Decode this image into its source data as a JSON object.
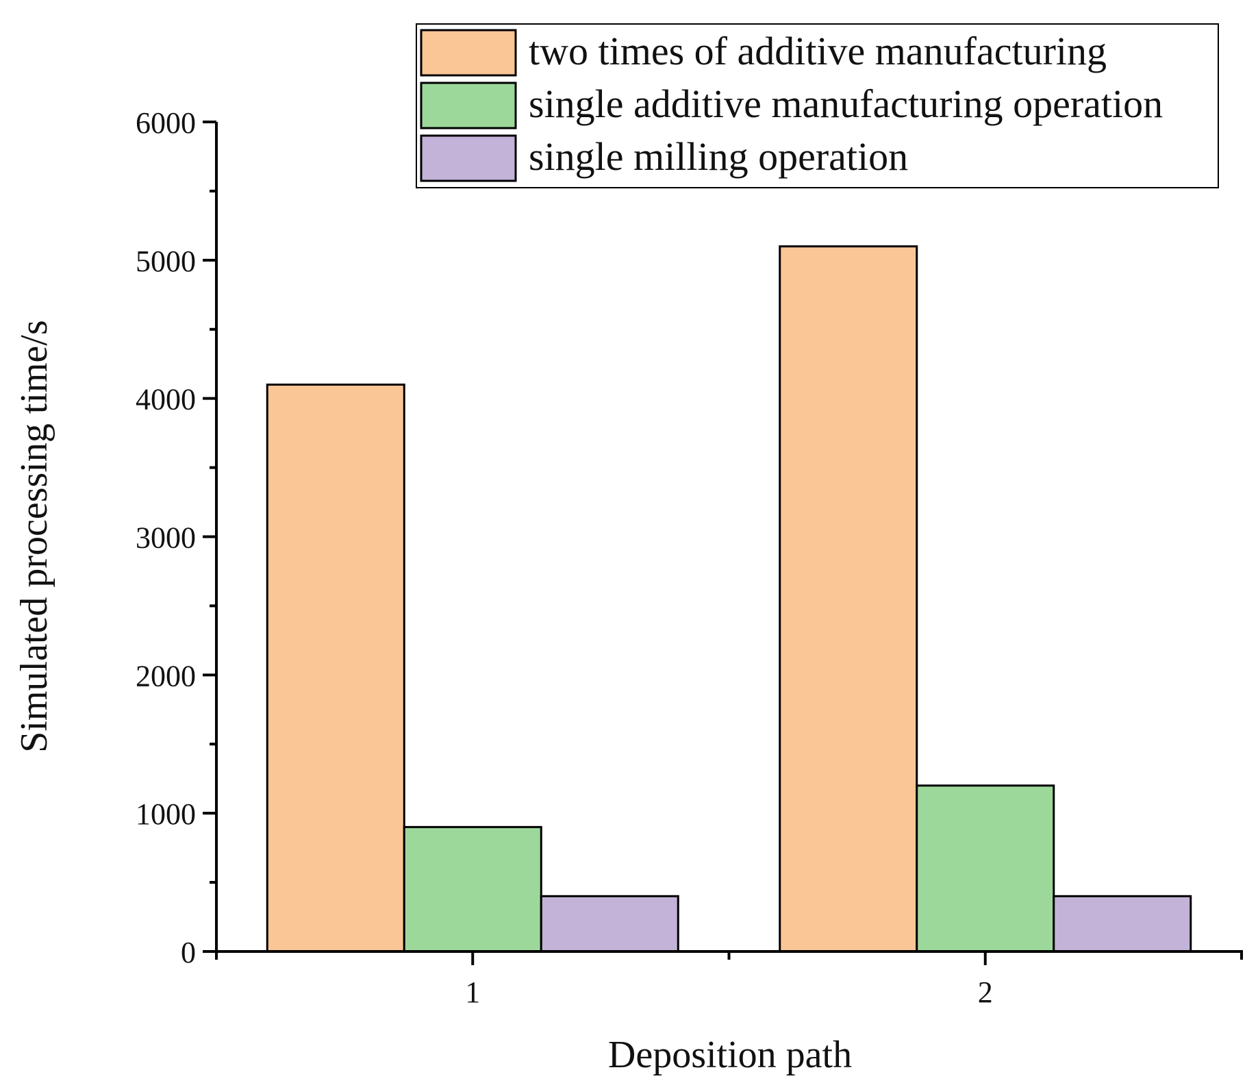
{
  "chart_data": {
    "type": "bar",
    "title": "",
    "xlabel": "Deposition path",
    "ylabel": "Simulated processing time/s",
    "categories": [
      "1",
      "2"
    ],
    "ylim": [
      0,
      6000
    ],
    "yticks": [
      0,
      1000,
      2000,
      3000,
      4000,
      5000,
      6000
    ],
    "grid": false,
    "legend_position": "top-right",
    "series": [
      {
        "name": "two times of additive manufacturing",
        "color": "#FBC696",
        "values": [
          4100,
          5100
        ]
      },
      {
        "name": "single additive manufacturing operation",
        "color": "#9DD89B",
        "values": [
          900,
          1200
        ]
      },
      {
        "name": "single milling operation",
        "color": "#C3B3D8",
        "values": [
          400,
          400
        ]
      }
    ]
  }
}
